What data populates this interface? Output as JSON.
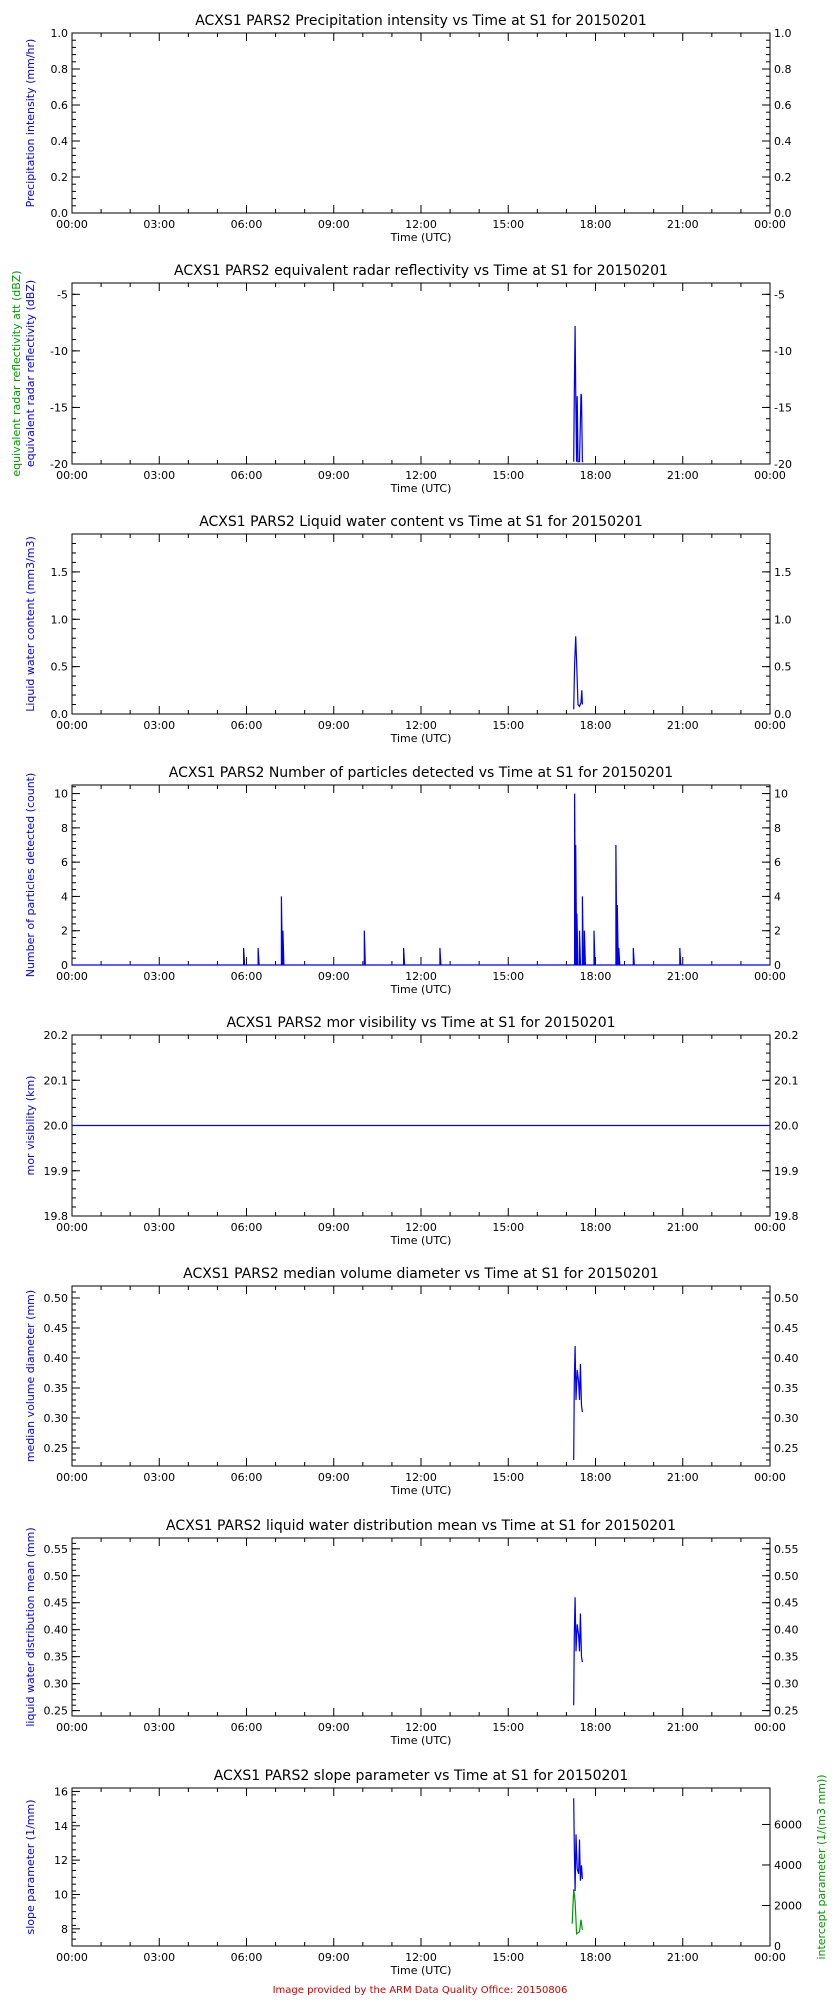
{
  "footer": "Image provided by the ARM Data Quality Office: 20150806",
  "colors": {
    "primary": "#0000ee",
    "secondary": "#009900",
    "axis": "#000000",
    "footer": "#cc0000"
  },
  "chart_data": [
    {
      "type": "line",
      "title": "ACXS1 PARS2 Precipitation intensity vs Time at S1 for 20150201",
      "xlabel": "Time (UTC)",
      "ylabel": "Precipitation intensity (mm/hr)",
      "xlim": [
        0,
        24
      ],
      "x_ticks": [
        "00:00",
        "03:00",
        "06:00",
        "09:00",
        "12:00",
        "15:00",
        "18:00",
        "21:00",
        "00:00"
      ],
      "ylim": [
        0,
        1
      ],
      "yticks": [
        "0.0",
        "0.2",
        "0.4",
        "0.6",
        "0.8",
        "1.0"
      ],
      "series": [
        {
          "values": []
        }
      ]
    },
    {
      "type": "line",
      "title": "ACXS1 PARS2 equivalent radar reflectivity vs Time at S1 for 20150201",
      "xlabel": "Time (UTC)",
      "ylabel": "equivalent radar reflectivity (dBZ)",
      "ylabel2": "equivalent radar reflectivity att (dBZ)",
      "xlim": [
        0,
        24
      ],
      "x_ticks": [
        "00:00",
        "03:00",
        "06:00",
        "09:00",
        "12:00",
        "15:00",
        "18:00",
        "21:00",
        "00:00"
      ],
      "ylim": [
        -20,
        -4
      ],
      "yticks": [
        "-20",
        "-15",
        "-10",
        "-5"
      ],
      "series": [
        {
          "x": [
            17.25,
            17.27,
            17.3,
            17.32,
            17.35,
            17.37,
            17.4,
            17.45,
            17.5,
            17.52,
            17.55,
            17.58
          ],
          "y": [
            -19.8,
            -13.8,
            -7.8,
            -13.5,
            -19.8,
            -14.0,
            -19.8,
            -19.8,
            -13.8,
            -14.0,
            -19.8,
            -19.8
          ]
        }
      ]
    },
    {
      "type": "line",
      "title": "ACXS1 PARS2 Liquid water content vs Time at S1 for 20150201",
      "xlabel": "Time (UTC)",
      "ylabel": "Liquid water content (mm3/m3)",
      "xlim": [
        0,
        24
      ],
      "x_ticks": [
        "00:00",
        "03:00",
        "06:00",
        "09:00",
        "12:00",
        "15:00",
        "18:00",
        "21:00",
        "00:00"
      ],
      "ylim": [
        0,
        1.9
      ],
      "yticks": [
        "0.0",
        "0.5",
        "1.0",
        "1.5"
      ],
      "series": [
        {
          "x": [
            17.25,
            17.28,
            17.32,
            17.35,
            17.4,
            17.45,
            17.5,
            17.53,
            17.55
          ],
          "y": [
            0.05,
            0.52,
            0.82,
            0.55,
            0.1,
            0.08,
            0.12,
            0.25,
            0.1
          ]
        }
      ]
    },
    {
      "type": "line",
      "title": "ACXS1 PARS2 Number of particles detected vs Time at S1 for 20150201",
      "xlabel": "Time (UTC)",
      "ylabel": "Number of particles detected (count)",
      "xlim": [
        0,
        24
      ],
      "x_ticks": [
        "00:00",
        "03:00",
        "06:00",
        "09:00",
        "12:00",
        "15:00",
        "18:00",
        "21:00",
        "00:00"
      ],
      "ylim": [
        0,
        10.5
      ],
      "yticks": [
        "0",
        "2",
        "4",
        "6",
        "8",
        "10"
      ],
      "spikes": [
        [
          5.9,
          1
        ],
        [
          6.4,
          1
        ],
        [
          7.2,
          4
        ],
        [
          7.25,
          2
        ],
        [
          10.05,
          2
        ],
        [
          11.4,
          1
        ],
        [
          12.65,
          1
        ],
        [
          17.28,
          10
        ],
        [
          17.32,
          7
        ],
        [
          17.36,
          3
        ],
        [
          17.45,
          2
        ],
        [
          17.55,
          4
        ],
        [
          17.62,
          2
        ],
        [
          17.95,
          2
        ],
        [
          18.7,
          7
        ],
        [
          18.75,
          3.5
        ],
        [
          18.8,
          1
        ],
        [
          19.3,
          1
        ],
        [
          20.9,
          1
        ]
      ]
    },
    {
      "type": "line",
      "title": "ACXS1 PARS2 mor visibility vs Time at S1 for 20150201",
      "xlabel": "Time (UTC)",
      "ylabel": "mor visibility (km)",
      "xlim": [
        0,
        24
      ],
      "x_ticks": [
        "00:00",
        "03:00",
        "06:00",
        "09:00",
        "12:00",
        "15:00",
        "18:00",
        "21:00",
        "00:00"
      ],
      "ylim": [
        19.8,
        20.2
      ],
      "yticks": [
        "19.8",
        "19.9",
        "20.0",
        "20.1",
        "20.2"
      ],
      "series": [
        {
          "x": [
            0,
            24
          ],
          "y": [
            20.0,
            20.0
          ]
        }
      ]
    },
    {
      "type": "line",
      "title": "ACXS1 PARS2 median volume diameter vs Time at S1 for 20150201",
      "xlabel": "Time (UTC)",
      "ylabel": "median volume diameter (mm)",
      "xlim": [
        0,
        24
      ],
      "x_ticks": [
        "00:00",
        "03:00",
        "06:00",
        "09:00",
        "12:00",
        "15:00",
        "18:00",
        "21:00",
        "00:00"
      ],
      "ylim": [
        0.22,
        0.52
      ],
      "yticks": [
        "0.25",
        "0.30",
        "0.35",
        "0.40",
        "0.45",
        "0.50"
      ],
      "series": [
        {
          "x": [
            17.25,
            17.27,
            17.3,
            17.33,
            17.37,
            17.42,
            17.45,
            17.48,
            17.52,
            17.55
          ],
          "y": [
            0.23,
            0.36,
            0.42,
            0.33,
            0.38,
            0.36,
            0.33,
            0.39,
            0.32,
            0.31
          ]
        }
      ]
    },
    {
      "type": "line",
      "title": "ACXS1 PARS2 liquid water distribution mean vs Time at S1 for 20150201",
      "xlabel": "Time (UTC)",
      "ylabel": "liquid water distribution mean (mm)",
      "xlim": [
        0,
        24
      ],
      "x_ticks": [
        "00:00",
        "03:00",
        "06:00",
        "09:00",
        "12:00",
        "15:00",
        "18:00",
        "21:00",
        "00:00"
      ],
      "ylim": [
        0.24,
        0.57
      ],
      "yticks": [
        "0.25",
        "0.30",
        "0.35",
        "0.40",
        "0.45",
        "0.50",
        "0.55"
      ],
      "series": [
        {
          "x": [
            17.25,
            17.27,
            17.3,
            17.33,
            17.37,
            17.42,
            17.45,
            17.48,
            17.52,
            17.55
          ],
          "y": [
            0.26,
            0.39,
            0.46,
            0.36,
            0.41,
            0.39,
            0.36,
            0.43,
            0.35,
            0.34
          ]
        }
      ]
    },
    {
      "type": "line",
      "title": "ACXS1 PARS2 slope parameter vs Time at S1 for 20150201",
      "xlabel": "Time (UTC)",
      "ylabel": "slope parameter (1/mm)",
      "ylabel2": "intercept parameter (1/(m3 mm))",
      "xlim": [
        0,
        24
      ],
      "x_ticks": [
        "00:00",
        "03:00",
        "06:00",
        "09:00",
        "12:00",
        "15:00",
        "18:00",
        "21:00",
        "00:00"
      ],
      "ylim": [
        7,
        16.2
      ],
      "yticks": [
        "8",
        "10",
        "12",
        "14",
        "16"
      ],
      "y2lim": [
        0,
        7800
      ],
      "y2ticks": [
        "0",
        "2000",
        "4000",
        "6000"
      ],
      "series": [
        {
          "x": [
            17.25,
            17.27,
            17.3,
            17.33,
            17.37,
            17.42,
            17.45,
            17.48,
            17.52,
            17.55
          ],
          "y": [
            15.6,
            12.8,
            10.2,
            13.5,
            11.5,
            11.2,
            13.2,
            10.8,
            11.7,
            10.9
          ]
        },
        {
          "axis": "right",
          "x": [
            17.2,
            17.25,
            17.3,
            17.35,
            17.45,
            17.5,
            17.55
          ],
          "y": [
            1100,
            2800,
            2200,
            600,
            700,
            1300,
            800
          ]
        }
      ]
    }
  ]
}
